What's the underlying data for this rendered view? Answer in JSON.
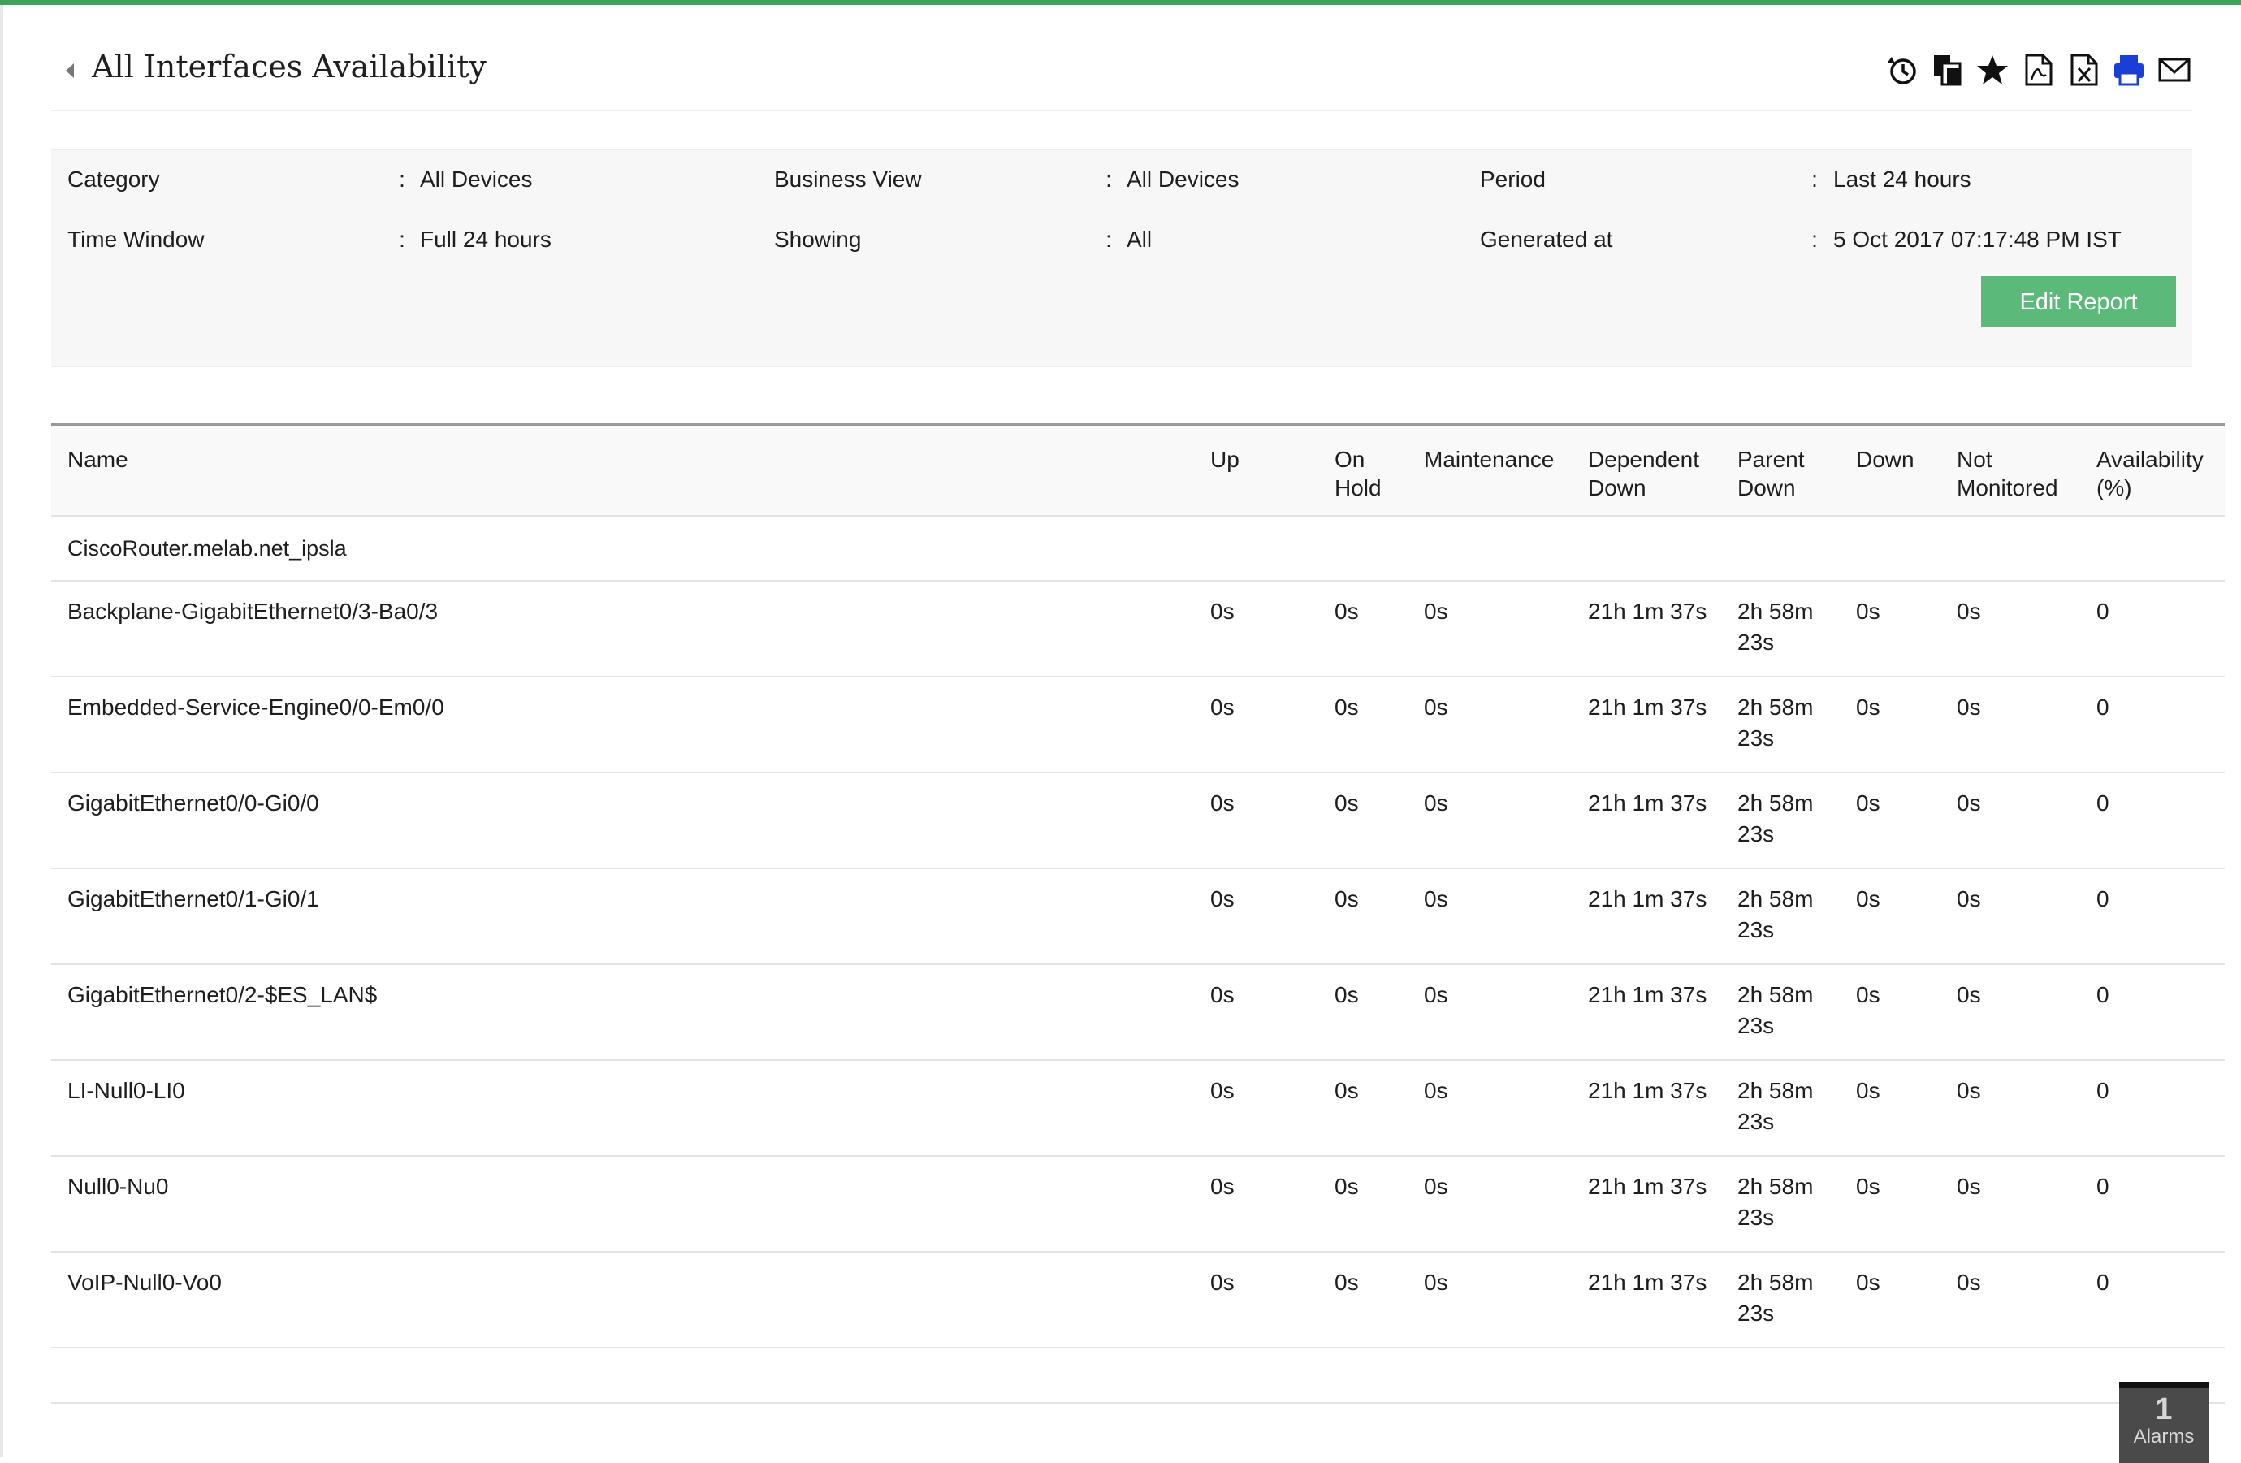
{
  "header": {
    "title": "All Interfaces Availability",
    "toolbar": [
      {
        "name": "schedule-icon",
        "title": "Schedule"
      },
      {
        "name": "copy-icon",
        "title": "Copy"
      },
      {
        "name": "favorite-star-icon",
        "title": "Favorite"
      },
      {
        "name": "export-pdf-icon",
        "title": "PDF"
      },
      {
        "name": "export-excel-icon",
        "title": "Excel"
      },
      {
        "name": "print-icon",
        "title": "Print"
      },
      {
        "name": "email-icon",
        "title": "Email"
      }
    ]
  },
  "filters": {
    "category_label": "Category",
    "category_value": "All Devices",
    "business_view_label": "Business View",
    "business_view_value": "All Devices",
    "period_label": "Period",
    "period_value": "Last 24 hours",
    "time_window_label": "Time Window",
    "time_window_value": "Full 24 hours",
    "showing_label": "Showing",
    "showing_value": "All",
    "generated_label": "Generated at",
    "generated_value": "5 Oct 2017 07:17:48 PM IST",
    "colon": ":",
    "edit_button": "Edit Report"
  },
  "table": {
    "columns": {
      "name": "Name",
      "up": "Up",
      "on_hold": "On Hold",
      "maintenance": "Maintenance",
      "dependent_down": "Dependent Down",
      "parent_down": "Parent Down",
      "down": "Down",
      "not_monitored": "Not Monitored",
      "availability": "Availability (%)"
    },
    "group": "CiscoRouter.melab.net_ipsla",
    "rows": [
      {
        "name": "Backplane-GigabitEthernet0/3-Ba0/3",
        "up": "0s",
        "on_hold": "0s",
        "maintenance": "0s",
        "dependent_down": "21h 1m 37s",
        "parent_down": "2h 58m 23s",
        "down": "0s",
        "not_monitored": "0s",
        "availability": "0"
      },
      {
        "name": "Embedded-Service-Engine0/0-Em0/0",
        "up": "0s",
        "on_hold": "0s",
        "maintenance": "0s",
        "dependent_down": "21h 1m 37s",
        "parent_down": "2h 58m 23s",
        "down": "0s",
        "not_monitored": "0s",
        "availability": "0"
      },
      {
        "name": "GigabitEthernet0/0-Gi0/0",
        "up": "0s",
        "on_hold": "0s",
        "maintenance": "0s",
        "dependent_down": "21h 1m 37s",
        "parent_down": "2h 58m 23s",
        "down": "0s",
        "not_monitored": "0s",
        "availability": "0"
      },
      {
        "name": "GigabitEthernet0/1-Gi0/1",
        "up": "0s",
        "on_hold": "0s",
        "maintenance": "0s",
        "dependent_down": "21h 1m 37s",
        "parent_down": "2h 58m 23s",
        "down": "0s",
        "not_monitored": "0s",
        "availability": "0"
      },
      {
        "name": "GigabitEthernet0/2-$ES_LAN$",
        "up": "0s",
        "on_hold": "0s",
        "maintenance": "0s",
        "dependent_down": "21h 1m 37s",
        "parent_down": "2h 58m 23s",
        "down": "0s",
        "not_monitored": "0s",
        "availability": "0"
      },
      {
        "name": "LI-Null0-LI0",
        "up": "0s",
        "on_hold": "0s",
        "maintenance": "0s",
        "dependent_down": "21h 1m 37s",
        "parent_down": "2h 58m 23s",
        "down": "0s",
        "not_monitored": "0s",
        "availability": "0"
      },
      {
        "name": "Null0-Nu0",
        "up": "0s",
        "on_hold": "0s",
        "maintenance": "0s",
        "dependent_down": "21h 1m 37s",
        "parent_down": "2h 58m 23s",
        "down": "0s",
        "not_monitored": "0s",
        "availability": "0"
      },
      {
        "name": "VoIP-Null0-Vo0",
        "up": "0s",
        "on_hold": "0s",
        "maintenance": "0s",
        "dependent_down": "21h 1m 37s",
        "parent_down": "2h 58m 23s",
        "down": "0s",
        "not_monitored": "0s",
        "availability": "0"
      }
    ]
  },
  "alarms": {
    "count": "1",
    "label": "Alarms"
  },
  "colors": {
    "accent_green": "#3aa55a",
    "button_green": "#5bb97a",
    "print_blue": "#1a3fd6"
  }
}
